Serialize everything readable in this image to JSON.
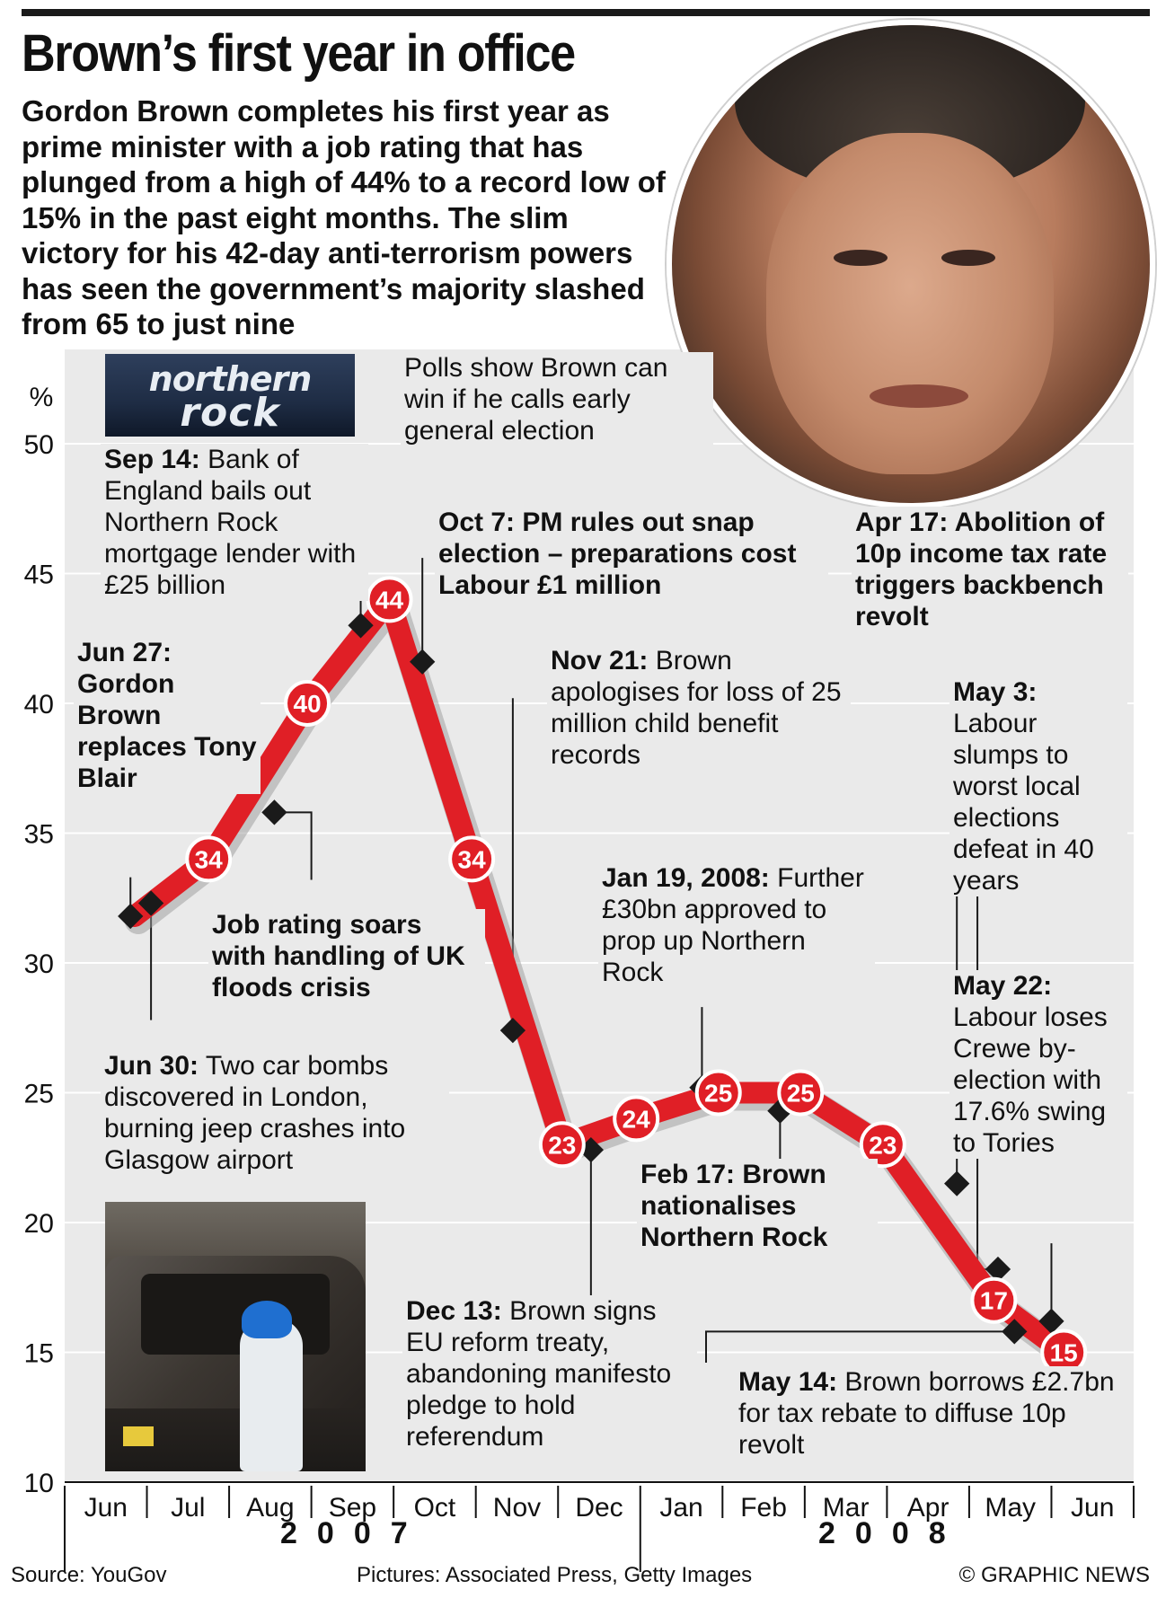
{
  "headline": "Brown’s first year in office",
  "intro": "Gordon Brown completes his first year as prime minister with a job rating that has plunged from a high of 44% to a record low of 15% in the past eight months. The slim victory for his 42-day anti-terrorism powers has seen the government’s majority slashed from 65 to just nine",
  "photos": {
    "northern_rock_logo_line1": "northern",
    "northern_rock_logo_line2": "rock"
  },
  "annotations": {
    "sep14_date": "Sep 14:",
    "sep14_text": "Bank of England bails out Northern Rock mortgage lender with £25 billion",
    "polls": "Polls show Brown can win if he calls early general election",
    "oct7": "Oct 7: PM rules out snap election – preparations cost Labour £1 million",
    "apr17": "Apr 17: Abolition of 10p income tax rate triggers backbench revolt",
    "jun27": "Jun 27: Gordon Brown replaces Tony Blair",
    "nov21_date": "Nov 21:",
    "nov21_text": "Brown apologises for loss of 25 million child benefit records",
    "may3_date": "May 3:",
    "may3_text": "Labour slumps to worst local elections defeat in 40 years",
    "floods": "Job rating soars with handling of UK floods crisis",
    "jan19_date": "Jan 19, 2008:",
    "jan19_text": "Further £30bn approved to prop up Northern Rock",
    "may22_date": "May 22:",
    "may22_text": "Labour loses Crewe by-election with 17.6% swing to Tories",
    "jun30_date": "Jun 30:",
    "jun30_text": "Two car bombs discovered in London, burning jeep crashes into Glasgow airport",
    "feb17": "Feb 17: Brown nationalises Northern Rock",
    "dec13_date": "Dec 13:",
    "dec13_text": "Brown signs EU reform treaty, abandoning manifesto pledge to hold referendum",
    "may14_date": "May 14:",
    "may14_text": "Brown borrows £2.7bn for tax rebate to diffuse 10p revolt"
  },
  "years": {
    "y2007": "2007",
    "y2008": "2008"
  },
  "footer": {
    "source": "Source: YouGov",
    "pictures": "Pictures: Associated Press, Getty Images",
    "credit": "© GRAPHIC NEWS"
  },
  "colors": {
    "line": "#e01f26",
    "panel": "#eaeaea",
    "grid": "#ffffff",
    "text": "#111111"
  },
  "chart_data": {
    "type": "line",
    "title": "Brown’s first year in office",
    "ylabel": "%",
    "ylim": [
      10,
      50
    ],
    "yticks": [
      10,
      15,
      20,
      25,
      30,
      35,
      40,
      45,
      50
    ],
    "months": [
      "Jun",
      "Jul",
      "Aug",
      "Sep",
      "Oct",
      "Nov",
      "Dec",
      "Jan",
      "Feb",
      "Mar",
      "Apr",
      "May",
      "Jun"
    ],
    "series": [
      {
        "labelled_points": [
          {
            "month": 1.75,
            "value": 34,
            "label": "34"
          },
          {
            "month": 2.95,
            "value": 40,
            "label": "40"
          },
          {
            "month": 3.95,
            "value": 44,
            "label": "44"
          },
          {
            "month": 4.95,
            "value": 34,
            "label": "34"
          },
          {
            "month": 6.05,
            "value": 23,
            "label": "23"
          },
          {
            "month": 6.95,
            "value": 24,
            "label": "24"
          },
          {
            "month": 7.95,
            "value": 25,
            "label": "25"
          },
          {
            "month": 8.95,
            "value": 25,
            "label": "25"
          },
          {
            "month": 9.95,
            "value": 23,
            "label": "23"
          },
          {
            "month": 11.3,
            "value": 17,
            "label": "17"
          },
          {
            "month": 12.15,
            "value": 15,
            "label": "15"
          }
        ],
        "line_points": [
          [
            0.85,
            31.8
          ],
          [
            1.75,
            34
          ],
          [
            2.95,
            40
          ],
          [
            3.95,
            44
          ],
          [
            4.95,
            34
          ],
          [
            6.05,
            23
          ],
          [
            6.95,
            24
          ],
          [
            7.95,
            25
          ],
          [
            8.95,
            25
          ],
          [
            9.95,
            23
          ],
          [
            11.3,
            17
          ],
          [
            12.15,
            15
          ]
        ],
        "event_markers": [
          [
            0.8,
            31.8
          ],
          [
            1.05,
            32.3
          ],
          [
            2.55,
            35.8
          ],
          [
            3.6,
            43
          ],
          [
            4.35,
            41.6
          ],
          [
            5.45,
            27.4
          ],
          [
            6.4,
            22.8
          ],
          [
            7.75,
            25.2
          ],
          [
            8.7,
            24.3
          ],
          [
            10.85,
            21.5
          ],
          [
            11.35,
            18.2
          ],
          [
            11.55,
            15.8
          ],
          [
            12.0,
            16.2
          ]
        ]
      }
    ]
  }
}
